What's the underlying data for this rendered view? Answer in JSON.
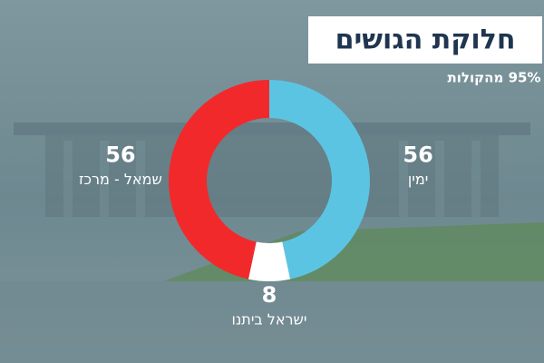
{
  "chart_data": {
    "type": "pie",
    "title": "חלוקת הגושים",
    "subtitle": "95% מהקולות",
    "categories": [
      "ימין",
      "ישראל ביתנו",
      "שמאל - מרכז"
    ],
    "values": [
      56,
      8,
      56
    ],
    "colors": [
      "#5bc4e2",
      "#ffffff",
      "#f2292b"
    ]
  }
}
